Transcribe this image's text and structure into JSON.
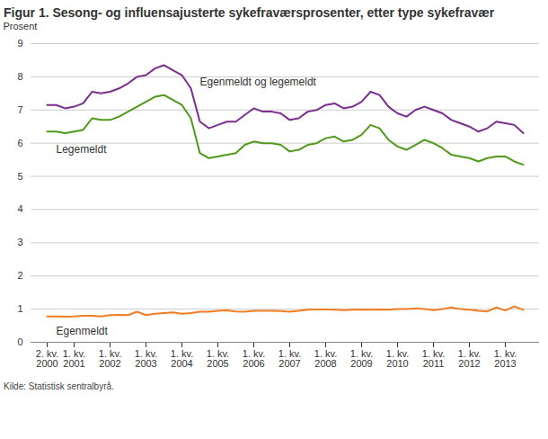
{
  "chart_data": {
    "type": "line",
    "title": "Figur 1. Sesong- og influensajusterte sykefraværsprosenter, etter type sykefravær",
    "y_label": "Prosent",
    "caption": "Kilde: Statistisk sentralbyrå.",
    "categories": [
      "2. kv. 2000",
      null,
      null,
      "1. kv. 2001",
      null,
      null,
      null,
      "1. kv. 2002",
      null,
      null,
      null,
      "1. kv. 2003",
      null,
      null,
      null,
      "1. kv. 2004",
      null,
      null,
      null,
      "1. kv. 2005",
      null,
      null,
      null,
      "1. kv. 2006",
      null,
      null,
      null,
      "1. kv. 2007",
      null,
      null,
      null,
      "1. kv. 2008",
      null,
      null,
      null,
      "1. kv. 2009",
      null,
      null,
      null,
      "1. kv. 2010",
      null,
      null,
      null,
      "1. kv. 2011",
      null,
      null,
      null,
      "1. kv. 2012",
      null,
      null,
      null,
      "1. kv. 2013",
      null,
      null
    ],
    "series": [
      {
        "name": "Egenmeldt og legemeldt",
        "color": "#7b2d8f",
        "values": [
          7.15,
          7.15,
          7.05,
          7.1,
          7.2,
          7.55,
          7.5,
          7.55,
          7.65,
          7.8,
          8.0,
          8.05,
          8.25,
          8.35,
          8.2,
          8.05,
          7.65,
          6.65,
          6.45,
          6.55,
          6.65,
          6.65,
          6.85,
          7.05,
          6.95,
          6.95,
          6.9,
          6.7,
          6.75,
          6.95,
          7.0,
          7.15,
          7.2,
          7.05,
          7.1,
          7.25,
          7.55,
          7.45,
          7.1,
          6.9,
          6.8,
          7.0,
          7.1,
          7.0,
          6.9,
          6.7,
          6.6,
          6.5,
          6.35,
          6.45,
          6.65,
          6.6,
          6.55,
          6.3
        ]
      },
      {
        "name": "Legemeldt",
        "color": "#4f9a1a",
        "values": [
          6.35,
          6.35,
          6.3,
          6.35,
          6.4,
          6.75,
          6.7,
          6.7,
          6.8,
          6.95,
          7.1,
          7.25,
          7.4,
          7.45,
          7.3,
          7.15,
          6.75,
          5.7,
          5.55,
          5.6,
          5.65,
          5.7,
          5.95,
          6.05,
          6.0,
          6.0,
          5.95,
          5.75,
          5.8,
          5.95,
          6.0,
          6.15,
          6.2,
          6.05,
          6.1,
          6.25,
          6.55,
          6.45,
          6.1,
          5.9,
          5.8,
          5.95,
          6.1,
          6.0,
          5.85,
          5.65,
          5.6,
          5.55,
          5.45,
          5.55,
          5.6,
          5.6,
          5.45,
          5.35
        ]
      },
      {
        "name": "Egenmeldt",
        "color": "#f07d22",
        "values": [
          0.78,
          0.78,
          0.77,
          0.78,
          0.8,
          0.8,
          0.78,
          0.82,
          0.83,
          0.82,
          0.92,
          0.82,
          0.86,
          0.88,
          0.9,
          0.86,
          0.88,
          0.92,
          0.92,
          0.95,
          0.96,
          0.93,
          0.92,
          0.95,
          0.95,
          0.95,
          0.94,
          0.92,
          0.95,
          0.98,
          0.99,
          0.99,
          0.98,
          0.97,
          0.98,
          0.99,
          0.98,
          0.99,
          0.98,
          1.0,
          1.0,
          1.02,
          1.0,
          0.97,
          1.0,
          1.05,
          1.0,
          0.98,
          0.95,
          0.93,
          1.05,
          0.96,
          1.08,
          0.98
        ]
      }
    ],
    "ylim": [
      0,
      9
    ],
    "yticks": [
      0,
      1,
      2,
      3,
      4,
      5,
      6,
      7,
      8,
      9
    ],
    "grid": true
  }
}
